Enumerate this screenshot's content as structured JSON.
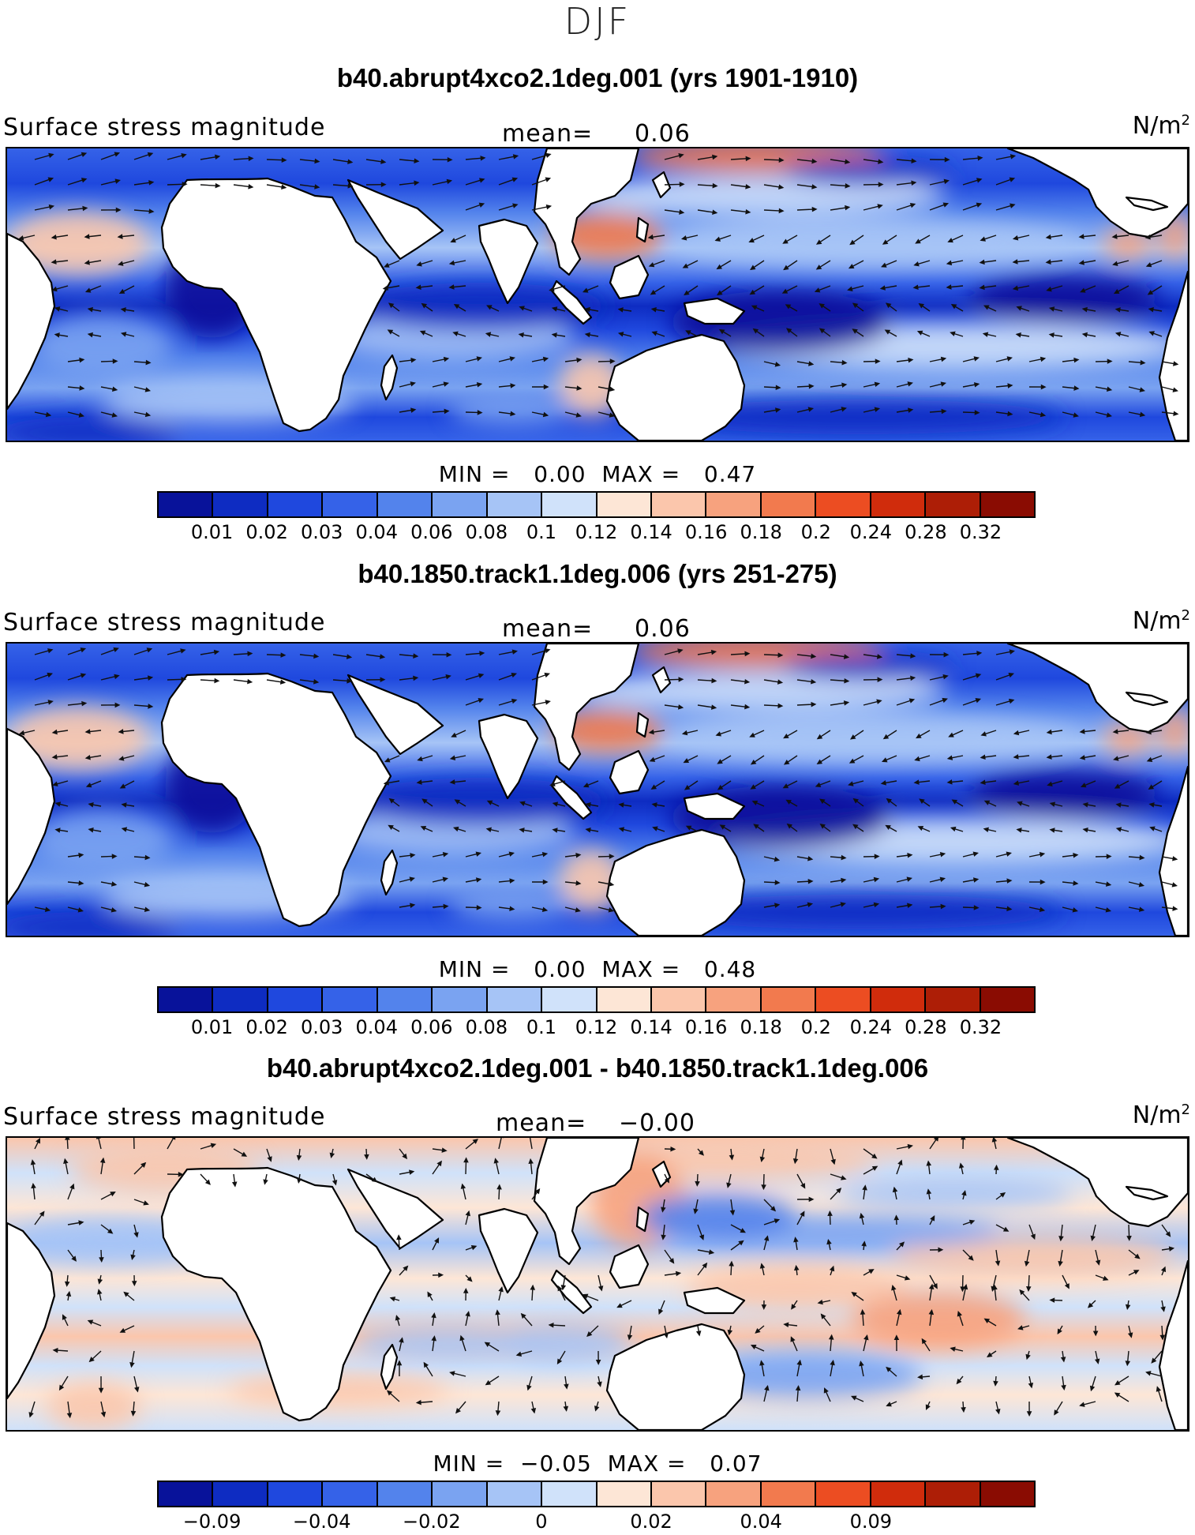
{
  "title": "DJF",
  "panels": [
    {
      "title": "b40.abrupt4xco2.1deg.001 (yrs 1901-1910)",
      "variable": "Surface stress magnitude",
      "mean_label": "mean=",
      "mean_value": "0.06",
      "units": "N/m",
      "units_exp": "2",
      "min_label": "MIN =",
      "min_value": "0.00",
      "max_label": "MAX =",
      "max_value": "0.47",
      "colorbar_ticks": [
        "0.01",
        "0.02",
        "0.03",
        "0.04",
        "0.06",
        "0.08",
        "0.1",
        "0.12",
        "0.14",
        "0.16",
        "0.18",
        "0.2",
        "0.24",
        "0.28",
        "0.32"
      ]
    },
    {
      "title": "b40.1850.track1.1deg.006 (yrs 251-275)",
      "variable": "Surface stress magnitude",
      "mean_label": "mean=",
      "mean_value": "0.06",
      "units": "N/m",
      "units_exp": "2",
      "min_label": "MIN =",
      "min_value": "0.00",
      "max_label": "MAX =",
      "max_value": "0.48",
      "colorbar_ticks": [
        "0.01",
        "0.02",
        "0.03",
        "0.04",
        "0.06",
        "0.08",
        "0.1",
        "0.12",
        "0.14",
        "0.16",
        "0.18",
        "0.2",
        "0.24",
        "0.28",
        "0.32"
      ]
    },
    {
      "title": "b40.abrupt4xco2.1deg.001 - b40.1850.track1.1deg.006",
      "variable": "Surface stress magnitude",
      "mean_label": "mean=",
      "mean_value": "−0.00",
      "units": "N/m",
      "units_exp": "2",
      "min_label": "MIN =",
      "min_value": "−0.05",
      "max_label": "MAX =",
      "max_value": "0.07",
      "colorbar_ticks": [
        "−0.09",
        "−0.04",
        "−0.02",
        "0",
        "0.02",
        "0.04",
        "0.09"
      ]
    }
  ],
  "colorbar_colors": [
    "#08129a",
    "#0e2cc2",
    "#1f48de",
    "#3562e8",
    "#5383ec",
    "#7aa3f1",
    "#a6c4f6",
    "#d0e2fa",
    "#fde6d6",
    "#fbc6ac",
    "#f7a27e",
    "#f27a4e",
    "#ec4d22",
    "#d02c0c",
    "#ad1e06",
    "#8a0c02"
  ],
  "map_colors": {
    "land": "#ffffff",
    "coast": "#000000",
    "arrow": "#111111"
  }
}
